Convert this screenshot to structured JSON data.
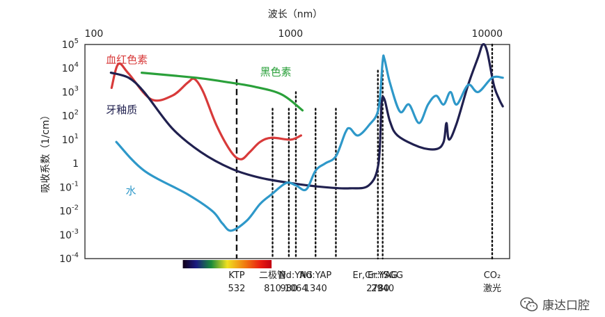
{
  "chart_data": {
    "type": "line",
    "title": "",
    "xlabel": "波长（nm）",
    "ylabel": "吸收系数（1/cm）",
    "xscale": "log",
    "yscale": "log",
    "xlim": [
      90,
      13000
    ],
    "ylim": [
      0.0001,
      100000
    ],
    "x_ticks": [
      {
        "value": 100,
        "label": "100"
      },
      {
        "value": 1000,
        "label": "1000"
      },
      {
        "value": 10000,
        "label": "10000"
      }
    ],
    "y_ticks": [
      {
        "value": 100000,
        "base": "10",
        "exp": "5"
      },
      {
        "value": 10000,
        "base": "10",
        "exp": "4"
      },
      {
        "value": 1000,
        "base": "10",
        "exp": "3"
      },
      {
        "value": 100,
        "base": "10",
        "exp": "2"
      },
      {
        "value": 10,
        "base": "10",
        "exp": "1"
      },
      {
        "value": 1,
        "base": "1",
        "exp": ""
      },
      {
        "value": 0.1,
        "base": "10",
        "exp": "-1"
      },
      {
        "value": 0.01,
        "base": "10",
        "exp": "-2"
      },
      {
        "value": 0.001,
        "base": "10",
        "exp": "-3"
      },
      {
        "value": 0.0001,
        "base": "10",
        "exp": "-4"
      }
    ],
    "series": [
      {
        "name": "血红色素",
        "color": "#d83a3a",
        "label_at": [
          115,
          16000
        ],
        "points": [
          [
            123,
            1500
          ],
          [
            133,
            15000
          ],
          [
            150,
            6000
          ],
          [
            195,
            500
          ],
          [
            250,
            700
          ],
          [
            300,
            2500
          ],
          [
            325,
            3500
          ],
          [
            360,
            1000
          ],
          [
            420,
            40
          ],
          [
            500,
            3
          ],
          [
            560,
            1.5
          ],
          [
            620,
            3
          ],
          [
            700,
            8
          ],
          [
            800,
            12
          ],
          [
            1000,
            10
          ],
          [
            1130,
            15
          ]
        ]
      },
      {
        "name": "黑色素",
        "color": "#2aa03a",
        "label_at": [
          700,
          5000
        ],
        "points": [
          [
            175,
            6500
          ],
          [
            330,
            4000
          ],
          [
            450,
            2800
          ],
          [
            650,
            1700
          ],
          [
            900,
            800
          ],
          [
            1150,
            170
          ]
        ]
      },
      {
        "name": "牙釉质",
        "color": "#20204f",
        "label_at": [
          115,
          130
        ],
        "points": [
          [
            122,
            6500
          ],
          [
            150,
            4000
          ],
          [
            180,
            1000
          ],
          [
            250,
            30
          ],
          [
            350,
            3
          ],
          [
            500,
            0.6
          ],
          [
            700,
            0.25
          ],
          [
            1000,
            0.15
          ],
          [
            1500,
            0.1
          ],
          [
            2000,
            0.09
          ],
          [
            2500,
            0.12
          ],
          [
            2800,
            1
          ],
          [
            2900,
            300
          ],
          [
            3000,
            500
          ],
          [
            3200,
            60
          ],
          [
            3500,
            15
          ],
          [
            4500,
            5
          ],
          [
            5500,
            4
          ],
          [
            6000,
            8
          ],
          [
            6200,
            50
          ],
          [
            6400,
            10
          ],
          [
            7000,
            50
          ],
          [
            8000,
            2000
          ],
          [
            9000,
            30000
          ],
          [
            9500,
            100000
          ],
          [
            10000,
            50000
          ],
          [
            10800,
            2000
          ],
          [
            11500,
            500
          ],
          [
            12000,
            250
          ]
        ]
      },
      {
        "name": "水",
        "color": "#2e98c9",
        "label_at": [
          145,
          0.05
        ],
        "points": [
          [
            130,
            8
          ],
          [
            180,
            0.5
          ],
          [
            300,
            0.05
          ],
          [
            400,
            0.01
          ],
          [
            450,
            0.003
          ],
          [
            500,
            0.0015
          ],
          [
            600,
            0.004
          ],
          [
            700,
            0.02
          ],
          [
            800,
            0.05
          ],
          [
            950,
            0.15
          ],
          [
            1064,
            0.12
          ],
          [
            1200,
            0.08
          ],
          [
            1340,
            0.5
          ],
          [
            1500,
            1
          ],
          [
            1700,
            2
          ],
          [
            1900,
            20
          ],
          [
            2000,
            30
          ],
          [
            2200,
            15
          ],
          [
            2500,
            40
          ],
          [
            2800,
            200
          ],
          [
            2940,
            20000
          ],
          [
            3000,
            25000
          ],
          [
            3200,
            2500
          ],
          [
            3600,
            150
          ],
          [
            4000,
            300
          ],
          [
            4500,
            50
          ],
          [
            5000,
            300
          ],
          [
            5500,
            700
          ],
          [
            6000,
            300
          ],
          [
            6500,
            1000
          ],
          [
            7000,
            300
          ],
          [
            8000,
            2000
          ],
          [
            9000,
            1000
          ],
          [
            10600,
            4000
          ],
          [
            12000,
            4000
          ]
        ]
      }
    ],
    "laser_lines": [
      {
        "x": 532,
        "style": "dashed",
        "label_top": "KTP",
        "label_bottom": "532",
        "top_value": 3500,
        "label_x": 532
      },
      {
        "x": 810,
        "style": "dotted",
        "label_top": "二极管",
        "label_bottom": "810",
        "top_value": 200,
        "label_x": 810
      },
      {
        "x": 980,
        "style": "dotted",
        "label_top": "",
        "label_bottom": "980",
        "top_value": 200,
        "label_x": 980
      },
      {
        "x": 1064,
        "style": "dotted",
        "label_top": "Nd:YAG",
        "label_bottom": "1064",
        "top_value": 1000,
        "label_x": 1064
      },
      {
        "x": 1340,
        "style": "dotted",
        "label_top": "Nd:YAP",
        "label_bottom": "1340",
        "top_value": 200,
        "label_x": 1340
      },
      {
        "x": 1700,
        "style": "dotted",
        "label_top": "",
        "label_bottom": "",
        "top_value": 200,
        "label_x": 1700
      },
      {
        "x": 2780,
        "style": "dotted",
        "label_top": "Er,Cr:YSGG",
        "label_bottom": "2780",
        "top_value": 8000,
        "label_x": 2780
      },
      {
        "x": 2940,
        "style": "dotted",
        "label_top": "Er:YAG",
        "label_bottom": "2940",
        "top_value": 8000,
        "label_x": 2940
      },
      {
        "x": 10600,
        "style": "dotted",
        "label_top": "CO₂",
        "label_bottom": "激光",
        "top_value": 100000,
        "label_x": 10600
      }
    ],
    "spectrum_bar": {
      "from": 350,
      "to": 750
    },
    "grid": false,
    "legend": "inline labels"
  },
  "brand": {
    "text": "康达口腔",
    "icon": "wechat-icon"
  }
}
